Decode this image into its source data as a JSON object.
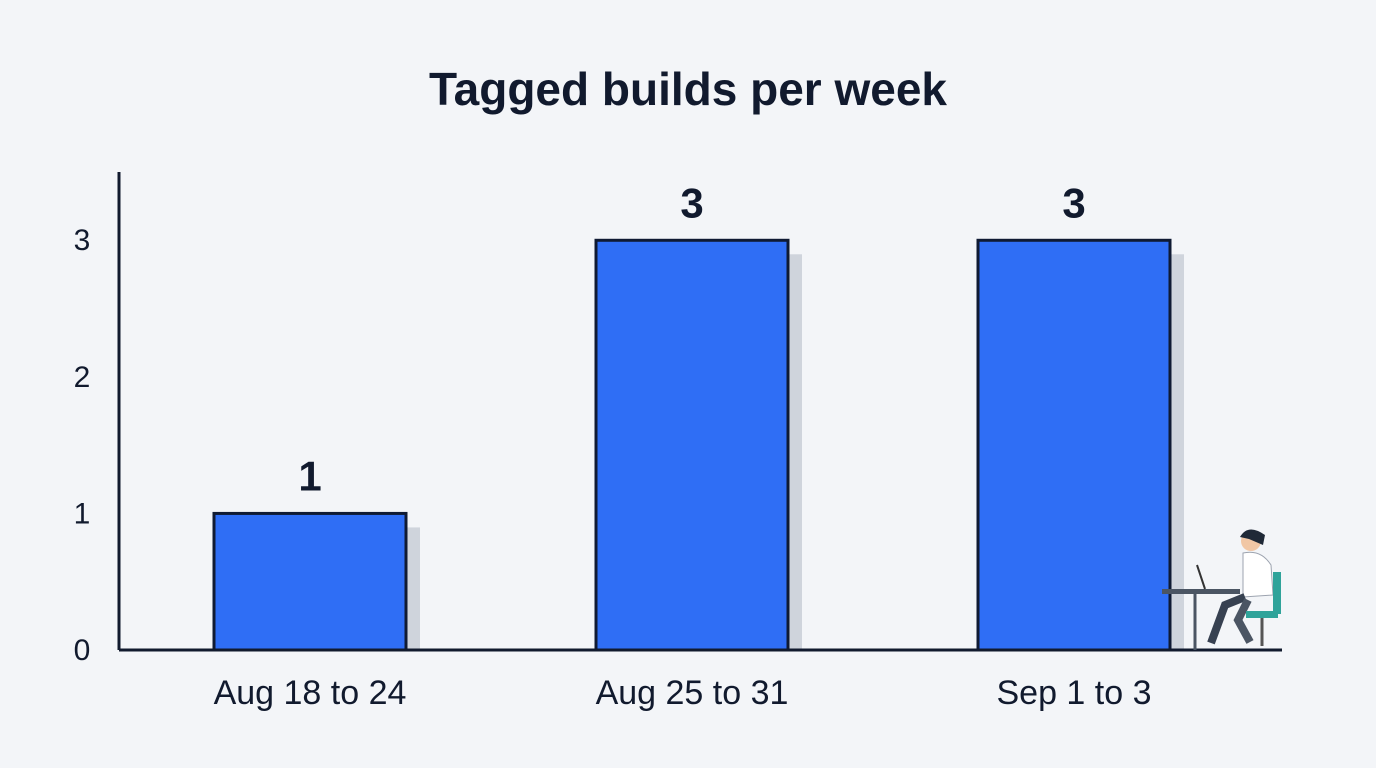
{
  "chart_data": {
    "type": "bar",
    "title": "Tagged builds per week",
    "categories": [
      "Aug 18 to 24",
      "Aug 25 to 31",
      "Sep 1 to 3"
    ],
    "values": [
      1,
      3,
      3
    ],
    "color": "#2f6ef5",
    "ylim": [
      0,
      3.5
    ],
    "yticks": [
      0,
      1,
      2,
      3
    ],
    "grid": false
  }
}
